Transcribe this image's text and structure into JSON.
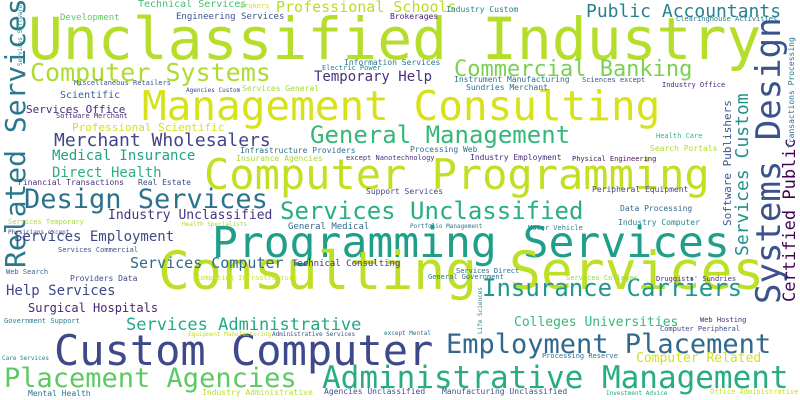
{
  "word_cloud": {
    "words": [
      {
        "text": "Unclassified Industry",
        "color": "#b5de2b"
      },
      {
        "text": "Management Consulting",
        "color": "#d8e219"
      },
      {
        "text": "Computer Programming",
        "color": "#c2df23"
      },
      {
        "text": "Programming Services",
        "color": "#1f9e89"
      },
      {
        "text": "Consulting Services",
        "color": "#bddf26"
      },
      {
        "text": "Custom Computer",
        "color": "#3e4989"
      },
      {
        "text": "Administrative Management",
        "color": "#26ad81"
      },
      {
        "text": "Placement Agencies",
        "color": "#5ec962"
      },
      {
        "text": "Employment Placement",
        "color": "#31688e"
      },
      {
        "text": "Computer Systems",
        "color": "#addc30"
      },
      {
        "text": "Commercial Banking",
        "color": "#7ad151"
      },
      {
        "text": "General Management",
        "color": "#35b779"
      },
      {
        "text": "Design Services",
        "color": "#2c728e"
      },
      {
        "text": "Services Unclassified",
        "color": "#29af7f"
      },
      {
        "text": "Insurance Carriers",
        "color": "#1f988b"
      },
      {
        "text": "Systems Design",
        "color": "#3b528b"
      },
      {
        "text": "Related Services",
        "color": "#2a788e"
      },
      {
        "text": "Certified Public",
        "color": "#440154"
      },
      {
        "text": "Public Accountants",
        "color": "#26828e"
      },
      {
        "text": "Professional Schools",
        "color": "#b8de29"
      },
      {
        "text": "Merchant Wholesalers",
        "color": "#414487"
      },
      {
        "text": "Services Custom",
        "color": "#21918c"
      },
      {
        "text": "Services Administrative",
        "color": "#22a884"
      },
      {
        "text": "Direct Health",
        "color": "#2ab07f"
      },
      {
        "text": "Medical Insurance",
        "color": "#20a386"
      },
      {
        "text": "Temporary Help",
        "color": "#46307e"
      },
      {
        "text": "Services Computer",
        "color": "#31688e"
      },
      {
        "text": "Services Employment",
        "color": "#3e4989"
      },
      {
        "text": "Help Services",
        "color": "#404688"
      },
      {
        "text": "Industry Unclassified",
        "color": "#453581"
      },
      {
        "text": "Colleges Universities",
        "color": "#35b779"
      },
      {
        "text": "Computer Related",
        "color": "#d2e21b"
      },
      {
        "text": "Software Publishers",
        "color": "#39568c"
      },
      {
        "text": "Surgical Hospitals",
        "color": "#482576"
      },
      {
        "text": "Services Office",
        "color": "#472d7b"
      },
      {
        "text": "Scientific",
        "color": "#33638d"
      },
      {
        "text": "Professional Scientific",
        "color": "#d5e21a"
      },
      {
        "text": "Technical Services",
        "color": "#44bf70"
      },
      {
        "text": "Engineering Services",
        "color": "#3b528b"
      },
      {
        "text": "Development",
        "color": "#5ec962"
      },
      {
        "text": "Brokers",
        "color": "#d8e219"
      },
      {
        "text": "Brokerages",
        "color": "#481a6c"
      },
      {
        "text": "Industry Custom",
        "color": "#287d8e"
      },
      {
        "text": "Clearinghouse Activities",
        "color": "#2a788e"
      },
      {
        "text": "Information Services",
        "color": "#2a788e"
      },
      {
        "text": "Electric Power",
        "color": "#277f8e"
      },
      {
        "text": "Agencies Custom",
        "color": "#404688"
      },
      {
        "text": "Services General",
        "color": "#a2da37"
      },
      {
        "text": "Instrument Manufacturing",
        "color": "#2c728e"
      },
      {
        "text": "Sundries Merchant",
        "color": "#2c728e"
      },
      {
        "text": "Sciences except",
        "color": "#3b528b"
      },
      {
        "text": "Industry Office",
        "color": "#482576"
      },
      {
        "text": "Infrastructure Providers",
        "color": "#2c728e"
      },
      {
        "text": "Processing Web",
        "color": "#2c728e"
      },
      {
        "text": "Insurance Agencies",
        "color": "#a2da37"
      },
      {
        "text": "except Nanotechnology",
        "color": "#46307e"
      },
      {
        "text": "Industry Employment",
        "color": "#472d7b"
      },
      {
        "text": "Physical Engineering",
        "color": "#471164"
      },
      {
        "text": "Search Portals",
        "color": "#addc30"
      },
      {
        "text": "Health Care",
        "color": "#35b779"
      },
      {
        "text": "Transactions Processing",
        "color": "#2c728e"
      },
      {
        "text": "Miscellaneous Retailers",
        "color": "#39568c"
      },
      {
        "text": "Software Merchant",
        "color": "#472d7b"
      },
      {
        "text": "Financial Transactions",
        "color": "#46307e"
      },
      {
        "text": "Real Estate",
        "color": "#3e4989"
      },
      {
        "text": "Support Services",
        "color": "#3e4989"
      },
      {
        "text": "Peripheral Equipment",
        "color": "#3e4989"
      },
      {
        "text": "Data Processing",
        "color": "#31688e"
      },
      {
        "text": "Industry Computer",
        "color": "#26828e"
      },
      {
        "text": "Services Temporary",
        "color": "#aadc32"
      },
      {
        "text": "Health Specialists",
        "color": "#aadc32"
      },
      {
        "text": "General Medical",
        "color": "#31688e"
      },
      {
        "text": "Portfolio Management",
        "color": "#2a788e"
      },
      {
        "text": "Motor Vehicle",
        "color": "#287d8e"
      },
      {
        "text": "Physicians except",
        "color": "#3b528b"
      },
      {
        "text": "Services Commercial",
        "color": "#39568c"
      },
      {
        "text": "Technical Consulting",
        "color": "#46307e"
      },
      {
        "text": "Providers Data",
        "color": "#3e4989"
      },
      {
        "text": "Computing Infrastructure",
        "color": "#d2e21b"
      },
      {
        "text": "Services Direct",
        "color": "#31688e"
      },
      {
        "text": "Services Colleges",
        "color": "#93d741"
      },
      {
        "text": "General Government",
        "color": "#2c728e"
      },
      {
        "text": "Druggists' Sundries",
        "color": "#46307e"
      },
      {
        "text": "Web Search",
        "color": "#31688e"
      },
      {
        "text": "Government Support",
        "color": "#287d8e"
      },
      {
        "text": "Life Sciences",
        "color": "#26828e"
      },
      {
        "text": "Web Hosting",
        "color": "#472d7b"
      },
      {
        "text": "Computer Peripheral",
        "color": "#3e4989"
      },
      {
        "text": "Equipment Manufacturing",
        "color": "#c2df23"
      },
      {
        "text": "Administrative Services",
        "color": "#3b528b"
      },
      {
        "text": "except Mental",
        "color": "#2c728e"
      },
      {
        "text": "Processing Reserve",
        "color": "#2c728e"
      },
      {
        "text": "Care Services",
        "color": "#26828e"
      },
      {
        "text": "Mental Health",
        "color": "#2c728e"
      },
      {
        "text": "Industry Administrative",
        "color": "#b5de2b"
      },
      {
        "text": "Agencies Unclassified",
        "color": "#3b528b"
      },
      {
        "text": "Manufacturing Unclassified",
        "color": "#3b528b"
      },
      {
        "text": "Investment Advice",
        "color": "#22a884"
      },
      {
        "text": "Office Administrative",
        "color": "#c8e020"
      },
      {
        "text": "Services Software",
        "color": "#21918c"
      }
    ]
  }
}
